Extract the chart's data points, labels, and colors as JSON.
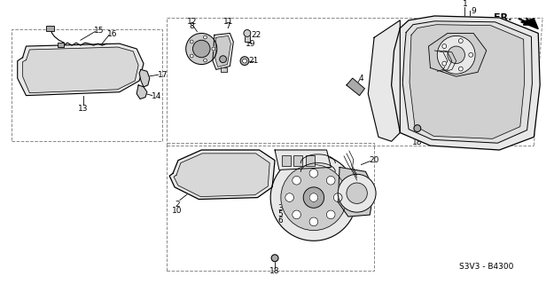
{
  "background_color": "#ffffff",
  "diagram_code": "S3V3 - B4300",
  "fr_label": "FR.",
  "line_color": "#000000",
  "light_fill": "#e8e8e8",
  "mid_fill": "#cccccc",
  "dark_fill": "#aaaaaa",
  "label_color": "#000000",
  "border_dash_color": "#888888"
}
